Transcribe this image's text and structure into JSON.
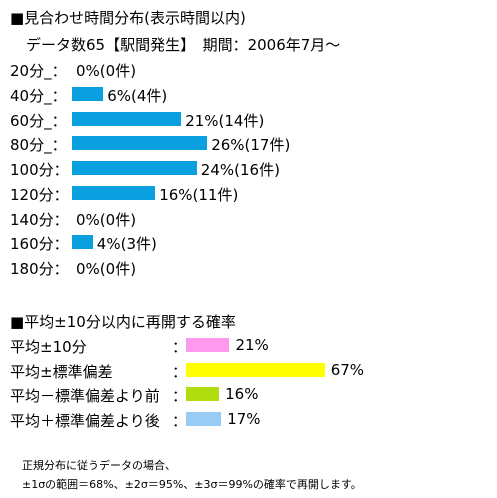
{
  "chart_data": [
    {
      "type": "bar",
      "title": "■見合わせ時間分布(表示時間以内)",
      "subtitle": "データ数65【駅間発生】　期間：2006年7月～",
      "categories": [
        "20分_：",
        "40分_：",
        "60分_：",
        "80分_：",
        "100分：",
        "120分：",
        "140分：",
        "160分：",
        "180分："
      ],
      "values": [
        0,
        6,
        21,
        26,
        24,
        16,
        0,
        4,
        0
      ],
      "labels": [
        "0%(0件)",
        "6%(4件)",
        "21%(14件)",
        "26%(17件)",
        "24%(16件)",
        "16%(11件)",
        "0%(0件)",
        "4%(3件)",
        "0%(0件)"
      ],
      "color": "#0aa0e0",
      "xlim": [
        0,
        100
      ]
    },
    {
      "type": "bar",
      "title": "■平均±10分以内に再開する確率",
      "categories": [
        "平均±10分",
        "平均±標準偏差",
        "平均－標準偏差より前",
        "平均＋標準偏差より後"
      ],
      "separator": "：",
      "values": [
        21,
        67,
        16,
        17
      ],
      "labels": [
        "21%",
        "67%",
        "16%",
        "17%"
      ],
      "colors": [
        "#ff99ee",
        "#ffff00",
        "#b0dd10",
        "#99ccf4"
      ],
      "xlim": [
        0,
        100
      ]
    }
  ],
  "note": {
    "line1": "正規分布に従うデータの場合、",
    "line2": "±1σの範囲＝68%、±2σ＝95%、±3σ＝99%の確率で再開します。"
  }
}
